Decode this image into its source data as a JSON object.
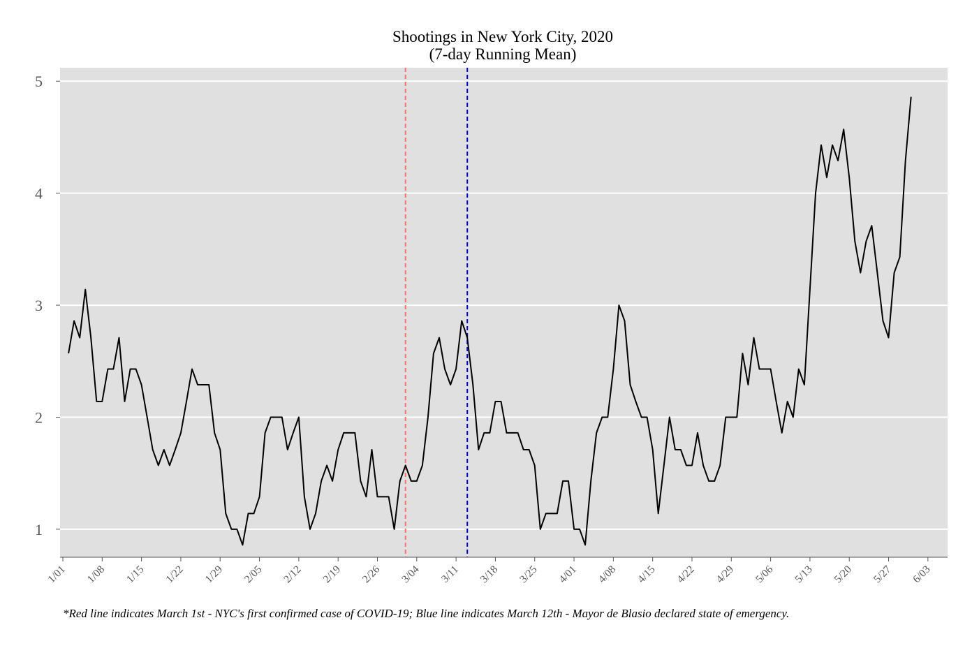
{
  "chart_data": {
    "type": "line",
    "title": "Shootings in New York City, 2020",
    "subtitle": "(7-day Running Mean)",
    "xlabel": "",
    "ylabel": "",
    "ylim": [
      0.75,
      5.12
    ],
    "yticks": [
      1,
      2,
      3,
      4,
      5
    ],
    "xlim": [
      -1.5,
      156.5
    ],
    "xtick_labels": [
      "1/01",
      "1/08",
      "1/15",
      "1/22",
      "1/29",
      "2/05",
      "2/12",
      "2/19",
      "2/26",
      "3/04",
      "3/11",
      "3/18",
      "3/25",
      "4/01",
      "4/08",
      "4/15",
      "4/22",
      "4/29",
      "5/06",
      "5/13",
      "5/20",
      "5/27",
      "6/03"
    ],
    "x_start": "1/02",
    "grid": true,
    "background": "#e0e0e0",
    "series": [
      {
        "color": "#000000",
        "values": [
          2.57,
          2.86,
          2.71,
          3.14,
          2.71,
          2.14,
          2.14,
          2.43,
          2.43,
          2.71,
          2.14,
          2.43,
          2.43,
          2.29,
          2.0,
          1.71,
          1.57,
          1.71,
          1.57,
          1.71,
          1.86,
          2.14,
          2.43,
          2.29,
          2.29,
          2.29,
          1.86,
          1.71,
          1.14,
          1.0,
          1.0,
          0.86,
          1.14,
          1.14,
          1.29,
          1.86,
          2.0,
          2.0,
          2.0,
          1.71,
          1.86,
          2.0,
          1.29,
          1.0,
          1.14,
          1.43,
          1.57,
          1.43,
          1.71,
          1.86,
          1.86,
          1.86,
          1.43,
          1.29,
          1.71,
          1.29,
          1.29,
          1.29,
          1.0,
          1.43,
          1.57,
          1.43,
          1.43,
          1.57,
          2.0,
          2.57,
          2.71,
          2.43,
          2.29,
          2.43,
          2.86,
          2.71,
          2.29,
          1.71,
          1.86,
          1.86,
          2.14,
          2.14,
          1.86,
          1.86,
          1.86,
          1.71,
          1.71,
          1.57,
          1.0,
          1.14,
          1.14,
          1.14,
          1.43,
          1.43,
          1.0,
          1.0,
          0.86,
          1.43,
          1.86,
          2.0,
          2.0,
          2.43,
          3.0,
          2.86,
          2.29,
          2.14,
          2.0,
          2.0,
          1.71,
          1.14,
          1.57,
          2.0,
          1.71,
          1.71,
          1.57,
          1.57,
          1.86,
          1.57,
          1.43,
          1.43,
          1.57,
          2.0,
          2.0,
          2.0,
          2.57,
          2.29,
          2.71,
          2.43,
          2.43,
          2.43,
          2.14,
          1.86,
          2.14,
          2.0,
          2.43,
          2.29,
          3.14,
          4.0,
          4.43,
          4.14,
          4.43,
          4.29,
          4.57,
          4.14,
          3.57,
          3.29,
          3.57,
          3.71,
          3.29,
          2.86,
          2.71,
          3.29,
          3.43,
          4.29,
          4.86
        ]
      }
    ],
    "vlines": [
      {
        "date": "3/01",
        "x": 60,
        "color": "#ff6f6f"
      },
      {
        "date": "3/12",
        "x": 71,
        "color": "#0000dd"
      }
    ]
  },
  "footnote": "*Red line indicates March 1st - NYC's first confirmed case of COVID-19; Blue line indicates March 12th - Mayor de Blasio declared state of emergency."
}
